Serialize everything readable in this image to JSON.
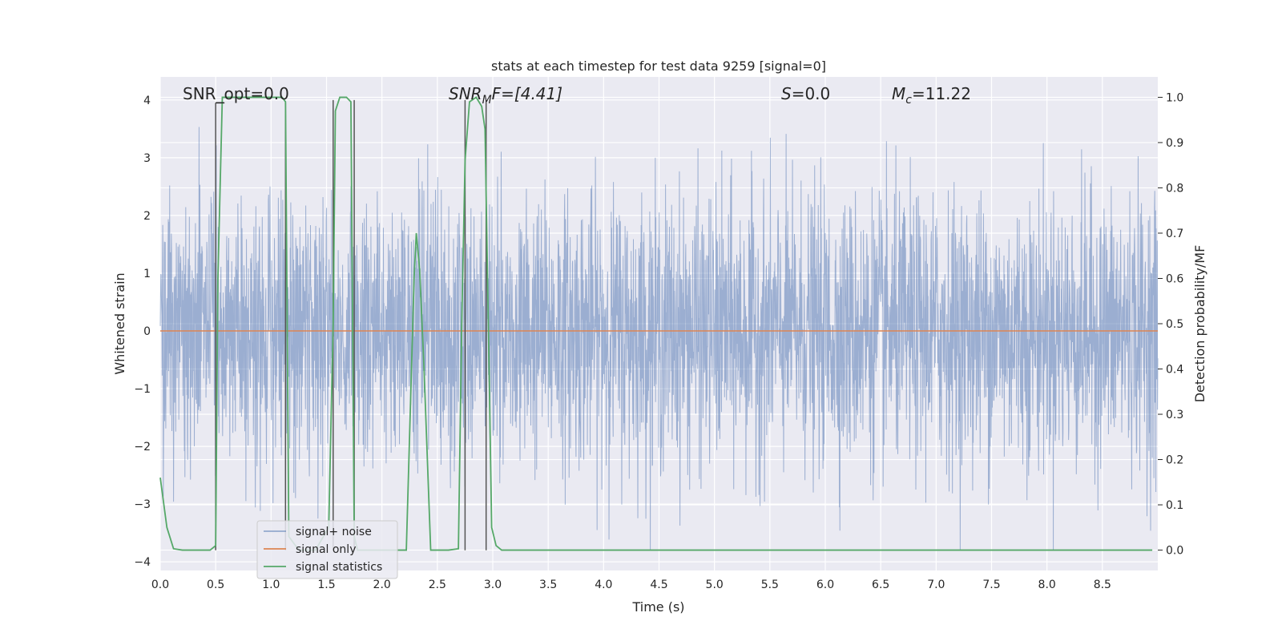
{
  "chart_data": {
    "type": "line",
    "title": "stats at each timestep for test data 9259 [signal=0]",
    "xlabel": "Time (s)",
    "ylabel": "Whitened strain",
    "y2label": "Detection probability/MF",
    "xlim": [
      0.0,
      9.0
    ],
    "ylim": [
      -4.15,
      4.4
    ],
    "y2lim": [
      -0.045,
      1.045
    ],
    "xticks": [
      "0.0",
      "0.5",
      "1.0",
      "1.5",
      "2.0",
      "2.5",
      "3.0",
      "3.5",
      "4.0",
      "4.5",
      "5.0",
      "5.5",
      "6.0",
      "6.5",
      "7.0",
      "7.5",
      "8.0",
      "8.5"
    ],
    "yticks": [
      "4",
      "3",
      "2",
      "1",
      "0",
      "−1",
      "−2",
      "−3",
      "−4"
    ],
    "y2ticks": [
      "1.0",
      "0.9",
      "0.8",
      "0.7",
      "0.6",
      "0.5",
      "0.4",
      "0.3",
      "0.2",
      "0.1",
      "0.0"
    ],
    "annotations": {
      "snr_opt": "SNR_opt=0.0",
      "snr_mf_main": "SNR",
      "snr_mf_sub": "M",
      "snr_mf_rest": "F=[4.41]",
      "s_main": "S",
      "s_rest": "=0.0",
      "mc_main": "M",
      "mc_sub": "c",
      "mc_rest": "=11.22"
    },
    "legend": {
      "placement": "lower left",
      "entries": [
        "signal+ noise",
        "signal only",
        "signal statistics"
      ]
    },
    "colors": {
      "background": "#eaeaf2",
      "grid": "#ffffff",
      "noise": "#4c72b0",
      "signal": "#dd8452",
      "statistics": "#55a868",
      "markers": "#555555"
    },
    "series": [
      {
        "name": "signal+ noise",
        "kind": "noise band",
        "approx_range": [
          -3.8,
          4.0
        ]
      },
      {
        "name": "signal only",
        "x": [
          0.0,
          9.0
        ],
        "y": [
          0.0,
          0.0
        ]
      },
      {
        "name": "signal statistics",
        "axis": "right",
        "x": [
          0.0,
          0.06,
          0.12,
          0.2,
          0.3,
          0.4,
          0.45,
          0.5,
          0.52,
          0.56,
          0.7,
          0.9,
          1.1,
          1.13,
          1.16,
          1.25,
          1.4,
          1.52,
          1.56,
          1.58,
          1.62,
          1.68,
          1.72,
          1.75,
          1.78,
          1.9,
          2.1,
          2.22,
          2.29,
          2.31,
          2.34,
          2.38,
          2.44,
          2.5,
          2.6,
          2.69,
          2.72,
          2.75,
          2.79,
          2.85,
          2.9,
          2.93,
          2.96,
          2.99,
          3.03,
          3.08,
          3.15,
          3.5,
          4.0,
          5.0,
          6.0,
          7.0,
          8.0,
          8.95
        ],
        "y": [
          0.16,
          0.05,
          0.003,
          0.0,
          0.0,
          0.0,
          0.0,
          0.01,
          0.6,
          1.0,
          1.0,
          1.0,
          1.0,
          0.99,
          0.03,
          0.0,
          0.0,
          0.05,
          0.5,
          0.97,
          1.0,
          1.0,
          0.99,
          0.03,
          0.0,
          0.0,
          0.0,
          0.0,
          0.6,
          0.7,
          0.62,
          0.4,
          0.0,
          0.0,
          0.0,
          0.003,
          0.5,
          0.86,
          0.99,
          1.0,
          0.98,
          0.93,
          0.5,
          0.05,
          0.01,
          0.0,
          0.0,
          0.0,
          0.0,
          0.0,
          0.0,
          0.0,
          0.0,
          0.0
        ]
      }
    ],
    "markers": [
      {
        "x": 0.5,
        "ymin": -3.8,
        "ymax": 3.95
      },
      {
        "x": 1.13,
        "ymin": -3.8,
        "ymax": 3.95
      },
      {
        "x": 1.56,
        "ymin": -3.8,
        "ymax": 4.0
      },
      {
        "x": 1.75,
        "ymin": -3.8,
        "ymax": 4.0
      },
      {
        "x": 2.75,
        "ymin": -3.8,
        "ymax": 4.0
      },
      {
        "x": 2.94,
        "ymin": -3.8,
        "ymax": 4.0
      }
    ]
  }
}
